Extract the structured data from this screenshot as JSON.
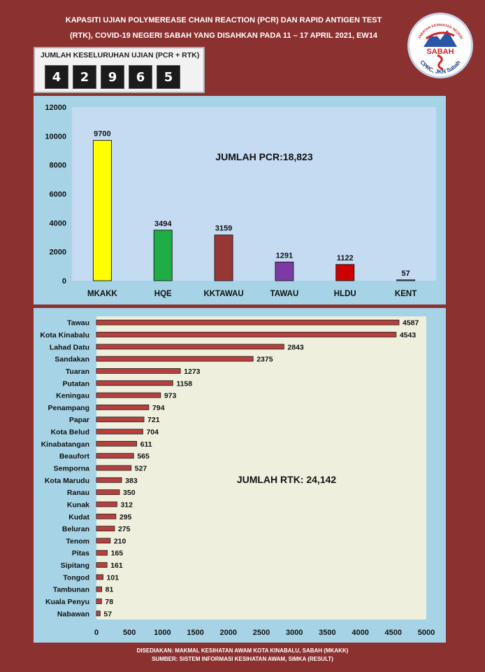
{
  "header": {
    "title_line1": "KAPASITI UJIAN POLYMEREASE CHAIN REACTION (PCR) DAN RAPID ANTIGEN TEST",
    "title_line2": "(RTK), COVID-19 NEGERI SABAH YANG DISAHKAN PADA 11 – 17 APRIL 2021, EW14"
  },
  "logo": {
    "top_text": "JABATAN KESIHATAN NEGERI",
    "name": "SABAH",
    "bottom_text": "CPRC, JKN Sabah"
  },
  "total": {
    "label": "JUMLAH KESELURUHAN UJIAN (PCR + RTK)",
    "digits": [
      "4",
      "2",
      "9",
      "6",
      "5"
    ]
  },
  "chart_data": [
    {
      "type": "bar",
      "annotation": "JUMLAH PCR:18,823",
      "categories": [
        "MKAKK",
        "HQE",
        "KKTAWAU",
        "TAWAU",
        "HLDU",
        "KENT"
      ],
      "values": [
        9700,
        3494,
        3159,
        1291,
        1122,
        57
      ],
      "colors": [
        "#ffff00",
        "#1fae46",
        "#973735",
        "#7d3aa4",
        "#cc0000",
        "#8896a8"
      ],
      "ylim": [
        0,
        12000
      ],
      "yticks": [
        0,
        2000,
        4000,
        6000,
        8000,
        10000,
        12000
      ],
      "grid": false
    },
    {
      "type": "bar",
      "orientation": "horizontal",
      "annotation": "JUMLAH RTK: 24,142",
      "categories": [
        "Tawau",
        "Kota Kinabalu",
        "Lahad Datu",
        "Sandakan",
        "Tuaran",
        "Putatan",
        "Keningau",
        "Penampang",
        "Papar",
        "Kota Belud",
        "Kinabatangan",
        "Beaufort",
        "Semporna",
        "Kota Marudu",
        "Ranau",
        "Kunak",
        "Kudat",
        "Beluran",
        "Tenom",
        "Pitas",
        "Sipitang",
        "Tongod",
        "Tambunan",
        "Kuala Penyu",
        "Nabawan"
      ],
      "values": [
        4587,
        4543,
        2843,
        2375,
        1273,
        1158,
        973,
        794,
        721,
        704,
        611,
        565,
        527,
        383,
        350,
        312,
        295,
        275,
        210,
        165,
        161,
        101,
        81,
        78,
        57
      ],
      "color": "#b5403e",
      "xlim": [
        0,
        5000
      ],
      "xticks": [
        0,
        500,
        1000,
        1500,
        2000,
        2500,
        3000,
        3500,
        4000,
        4500,
        5000
      ],
      "grid": false
    }
  ],
  "footer": {
    "line1": "DISEDIAKAN: MAKMAL KESIHATAN AWAM KOTA KINABALU, SABAH (MKAKK)",
    "line2": "SUMBER: SISTEM INFORMASI KESIHATAN AWAM, SIMKA (RESULT)"
  }
}
